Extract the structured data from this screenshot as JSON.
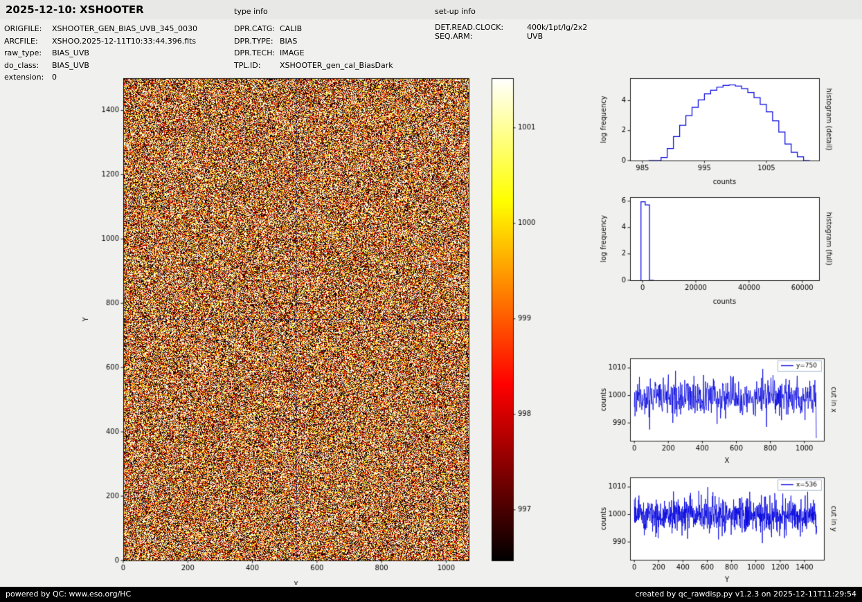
{
  "header": {
    "title": "2025-12-10: XSHOOTER",
    "type_info_label": "type info",
    "setup_info_label": "set-up info"
  },
  "file_info": {
    "rows": [
      {
        "label": "ORIGFILE:",
        "value": "XSHOOTER_GEN_BIAS_UVB_345_0030"
      },
      {
        "label": "ARCFILE:",
        "value": "XSHOO.2025-12-11T10:33:44.396.fits"
      },
      {
        "label": "raw_type:",
        "value": "BIAS_UVB"
      },
      {
        "label": "do_class:",
        "value": "BIAS_UVB"
      },
      {
        "label": "extension:",
        "value": "0"
      }
    ]
  },
  "type_info": {
    "rows": [
      {
        "label": "DPR.CATG:",
        "value": "CALIB"
      },
      {
        "label": "DPR.TYPE:",
        "value": "BIAS"
      },
      {
        "label": "DPR.TECH:",
        "value": "IMAGE"
      },
      {
        "label": "TPL.ID:",
        "value": "XSHOOTER_gen_cal_BiasDark"
      }
    ]
  },
  "setup_info": {
    "rows": [
      {
        "label": "DET.READ.CLOCK:",
        "value": "400k/1pt/lg/2x2"
      },
      {
        "label": "SEQ.ARM:",
        "value": "UVB"
      }
    ]
  },
  "footer": {
    "left": "powered by QC: www.eso.org/HC",
    "right": "created by qc_rawdisp.py v1.2.3 on 2025-12-11T11:29:54"
  },
  "colors": {
    "plot_line": "#0000dd",
    "crosshair": "#000080",
    "axis": "#000000",
    "footer_bg": "#000000"
  },
  "chart_data": [
    {
      "id": "bias-image",
      "type": "heatmap",
      "xlabel": "X",
      "ylabel": "Y",
      "xlim": [
        0,
        1070
      ],
      "ylim": [
        0,
        1500
      ],
      "xticks": [
        0,
        200,
        400,
        600,
        800,
        1000
      ],
      "yticks": [
        0,
        200,
        400,
        600,
        800,
        1000,
        1200,
        1400
      ],
      "crosshair": {
        "x": 536,
        "y": 750
      },
      "noise": {
        "mean": 999.0,
        "sigma": 3.2,
        "seed": 7
      },
      "colormap": "hot",
      "colorbar": {
        "vmin": 996.47,
        "vmax": 1001.52,
        "ticks": [
          997,
          998,
          999,
          1000,
          1001
        ]
      }
    },
    {
      "id": "hist-detail",
      "type": "histogram-step",
      "title_right": "histogram (detail)",
      "xlabel": "counts",
      "ylabel": "log frequency",
      "xlim": [
        983,
        1013.5
      ],
      "ylim": [
        0,
        5.5
      ],
      "xticks": [
        985,
        995,
        1005
      ],
      "yticks": [
        0,
        2,
        4
      ],
      "bin_start": 986,
      "bin_width": 1,
      "values": [
        0,
        0,
        0.2,
        0.8,
        1.6,
        2.35,
        3.0,
        3.55,
        4.05,
        4.45,
        4.7,
        4.9,
        5.02,
        5.05,
        4.97,
        4.8,
        4.55,
        4.2,
        3.75,
        3.25,
        2.65,
        1.9,
        1.1,
        0.55,
        0.25,
        0
      ]
    },
    {
      "id": "hist-full",
      "type": "histogram-step",
      "title_right": "histogram (full)",
      "xlabel": "counts",
      "ylabel": "log frequency",
      "xlim": [
        -4700,
        66300
      ],
      "ylim": [
        0,
        6.3
      ],
      "xticks": [
        0,
        20000,
        40000,
        60000
      ],
      "yticks": [
        0,
        2,
        4,
        6
      ],
      "bin_start": -600,
      "bin_width": 1600,
      "values": [
        5.95,
        5.72,
        0
      ]
    },
    {
      "id": "cut-x",
      "type": "line-noise",
      "title_right": "cut in x",
      "legend": "y=750",
      "xlabel": "X",
      "ylabel": "counts",
      "xlim": [
        -25,
        1115
      ],
      "ylim": [
        983.5,
        1013.5
      ],
      "xticks": [
        0,
        200,
        400,
        600,
        800,
        1000
      ],
      "yticks": [
        990,
        1000,
        1010
      ],
      "x_start": 0,
      "x_end": 1070,
      "n": 535,
      "mean": 999.3,
      "sigma": 3.1,
      "seed": 11,
      "end_dip": 984.5
    },
    {
      "id": "cut-y",
      "type": "line-noise",
      "title_right": "cut in y",
      "legend": "x=536",
      "xlabel": "Y",
      "ylabel": "counts",
      "xlim": [
        -35,
        1560
      ],
      "ylim": [
        983.5,
        1013.5
      ],
      "xticks": [
        0,
        200,
        400,
        600,
        800,
        1000,
        1200,
        1400
      ],
      "yticks": [
        990,
        1000,
        1010
      ],
      "x_start": 0,
      "x_end": 1500,
      "n": 750,
      "mean": 999.4,
      "sigma": 3.1,
      "seed": 23
    }
  ]
}
